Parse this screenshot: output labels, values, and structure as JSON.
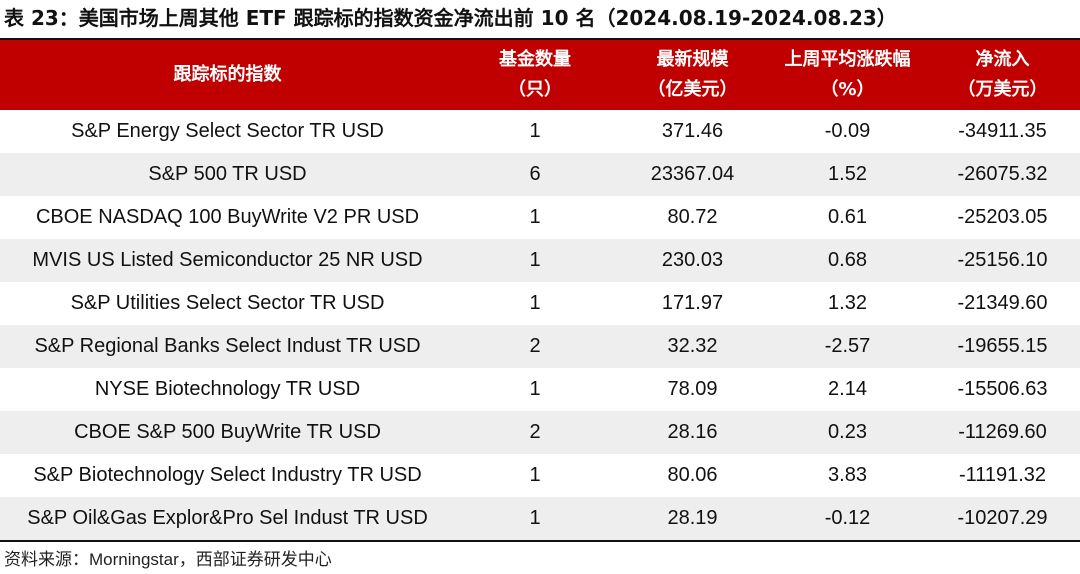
{
  "title": "表 23：美国市场上周其他 ETF 跟踪标的指数资金净流出前 10 名（2024.08.19-2024.08.23）",
  "table": {
    "headers": [
      {
        "line1": "跟踪标的指数",
        "line2": ""
      },
      {
        "line1": "基金数量",
        "line2": "（只）"
      },
      {
        "line1": "最新规模",
        "line2": "（亿美元）"
      },
      {
        "line1": "上周平均涨跌幅",
        "line2": "（%）"
      },
      {
        "line1": "净流入",
        "line2": "（万美元）"
      }
    ],
    "rows": [
      [
        "S&P Energy Select Sector TR USD",
        "1",
        "371.46",
        "-0.09",
        "-34911.35"
      ],
      [
        "S&P 500 TR USD",
        "6",
        "23367.04",
        "1.52",
        "-26075.32"
      ],
      [
        "CBOE NASDAQ 100 BuyWrite V2 PR USD",
        "1",
        "80.72",
        "0.61",
        "-25203.05"
      ],
      [
        "MVIS US Listed Semiconductor 25 NR USD",
        "1",
        "230.03",
        "0.68",
        "-25156.10"
      ],
      [
        "S&P Utilities Select Sector TR USD",
        "1",
        "171.97",
        "1.32",
        "-21349.60"
      ],
      [
        "S&P Regional Banks Select Indust TR USD",
        "2",
        "32.32",
        "-2.57",
        "-19655.15"
      ],
      [
        "NYSE Biotechnology TR USD",
        "1",
        "78.09",
        "2.14",
        "-15506.63"
      ],
      [
        "CBOE S&P 500 BuyWrite TR USD",
        "2",
        "28.16",
        "0.23",
        "-11269.60"
      ],
      [
        "S&P Biotechnology Select Industry TR USD",
        "1",
        "80.06",
        "3.83",
        "-11191.32"
      ],
      [
        "S&P Oil&Gas Explor&Pro Sel Indust TR USD",
        "1",
        "28.19",
        "-0.12",
        "-10207.29"
      ]
    ]
  },
  "source": {
    "prefix": "资料来源：",
    "name": "Morningstar",
    "suffix": "，西部证券研发中心"
  },
  "colors": {
    "header_bg": "#c00000",
    "stripe": "#eeeeee"
  }
}
